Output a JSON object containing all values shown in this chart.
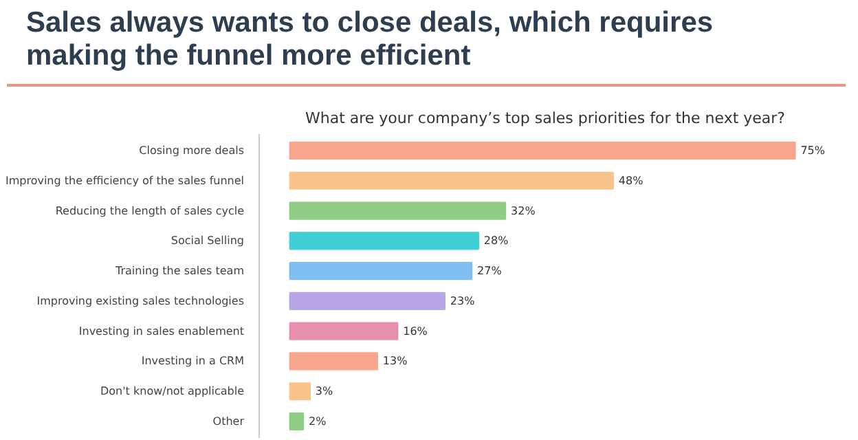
{
  "chart_data": {
    "type": "bar",
    "orientation": "horizontal",
    "title": "Sales always wants to close deals, which requires\nmaking the funnel more efficient",
    "subtitle": "What are your company’s top sales priorities for the next year?",
    "categories": [
      "Closing more deals",
      "Improving the efficiency of the sales funnel",
      "Reducing the length of sales cycle",
      "Social Selling",
      "Training the sales team",
      "Improving existing sales technologies",
      "Investing in sales enablement",
      "Investing in a CRM",
      "Don't know/not applicable",
      "Other"
    ],
    "values": [
      75,
      48,
      32,
      28,
      27,
      23,
      16,
      13,
      3,
      2
    ],
    "colors": [
      "#f8a58e",
      "#f9c48c",
      "#8fcc84",
      "#3fcfd4",
      "#7fbff0",
      "#b9a6e6",
      "#e88fb0",
      "#f8a58e",
      "#f9c48c",
      "#8fcc84"
    ],
    "value_labels": [
      "75%",
      "48%",
      "32%",
      "28%",
      "27%",
      "23%",
      "16%",
      "13%",
      "3%",
      "2%"
    ],
    "tick_labels": "y",
    "grid": false
  }
}
